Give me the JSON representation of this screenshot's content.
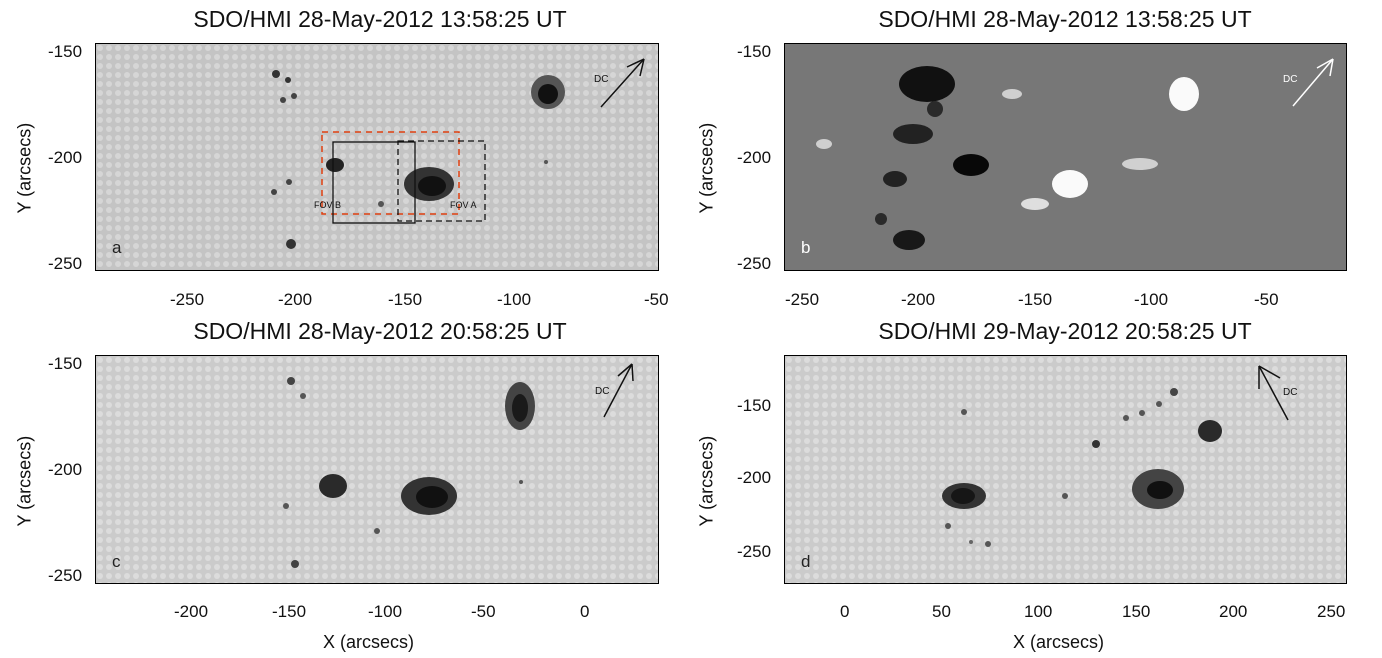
{
  "panels": [
    {
      "id": "a",
      "title": "SDO/HMI 28-May-2012 13:58:25 UT",
      "letter": "a",
      "ylabel": "Y (arcsecs)",
      "xticks": [
        "-250",
        "-200",
        "-150",
        "-100",
        "-50"
      ],
      "yticks": [
        "-150",
        "-200",
        "-250"
      ],
      "dc": "DC",
      "fov_a": "FOV A",
      "fov_b": "FOV B",
      "style": "continuum"
    },
    {
      "id": "b",
      "title": "SDO/HMI 28-May-2012 13:58:25 UT",
      "letter": "b",
      "ylabel": "Y (arcsecs)",
      "xticks": [
        "-250",
        "-200",
        "-150",
        "-100",
        "-50"
      ],
      "yticks": [
        "-150",
        "-200",
        "-250"
      ],
      "dc": "DC",
      "style": "magnetogram"
    },
    {
      "id": "c",
      "title": "SDO/HMI 28-May-2012 20:58:25 UT",
      "letter": "c",
      "ylabel": "Y (arcsecs)",
      "xlabel": "X (arcsecs)",
      "xticks": [
        "-200",
        "-150",
        "-100",
        "-50",
        "0"
      ],
      "yticks": [
        "-150",
        "-200",
        "-250"
      ],
      "dc": "DC",
      "style": "continuum"
    },
    {
      "id": "d",
      "title": "SDO/HMI 29-May-2012 20:58:25 UT",
      "letter": "d",
      "ylabel": "Y (arcsecs)",
      "xlabel": "X (arcsecs)",
      "xticks": [
        "0",
        "50",
        "100",
        "150",
        "200",
        "250"
      ],
      "yticks": [
        "-150",
        "-200",
        "-250"
      ],
      "dc": "DC",
      "style": "continuum"
    }
  ]
}
